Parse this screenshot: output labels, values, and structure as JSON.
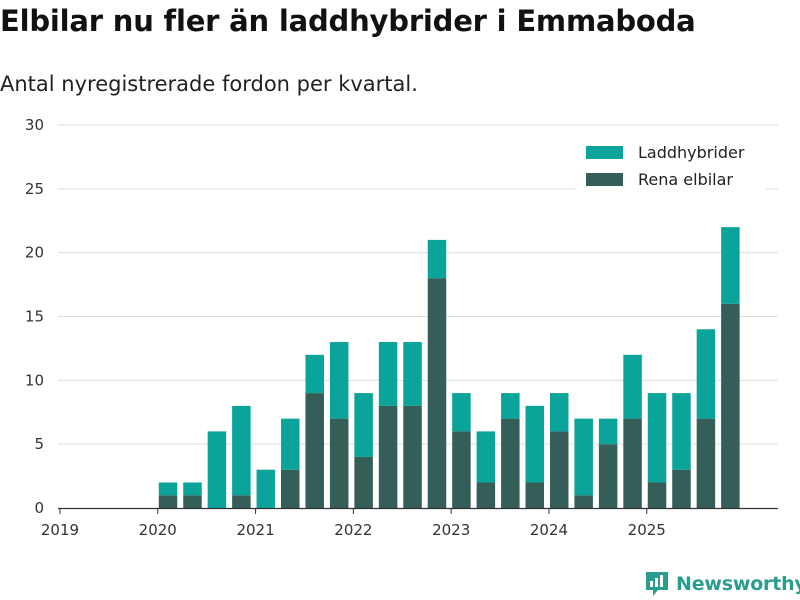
{
  "title": "Elbilar nu fler än laddhybrider i Emmaboda",
  "subtitle": "Antal nyregistrerade fordon per kvartal.",
  "brand": "Newsworthy",
  "colors": {
    "laddhybrider": "#0aa49a",
    "rena_elbilar": "#355e58",
    "grid": "#dddddd"
  },
  "chart_data": {
    "type": "bar",
    "stacked": true,
    "title": "Elbilar nu fler än laddhybrider i Emmaboda",
    "xlabel": "",
    "ylabel": "",
    "ylim": [
      0,
      30
    ],
    "yticks": [
      "0",
      "5",
      "10",
      "15",
      "20",
      "25",
      "30"
    ],
    "xticks": [
      "2019",
      "2020",
      "2021",
      "2022",
      "2023",
      "2024",
      "2025"
    ],
    "legend": {
      "position": "top-right",
      "entries": [
        "Laddhybrider",
        "Rena elbilar"
      ]
    },
    "categories": [
      "2019 Q1",
      "2019 Q2",
      "2019 Q3",
      "2019 Q4",
      "2020 Q1",
      "2020 Q2",
      "2020 Q3",
      "2020 Q4",
      "2021 Q1",
      "2021 Q2",
      "2021 Q3",
      "2021 Q4",
      "2022 Q1",
      "2022 Q2",
      "2022 Q3",
      "2022 Q4",
      "2023 Q1",
      "2023 Q2",
      "2023 Q3",
      "2023 Q4",
      "2024 Q1",
      "2024 Q2",
      "2024 Q3",
      "2024 Q4",
      "2025 Q1",
      "2025 Q2",
      "2025 Q3",
      "2025 Q4"
    ],
    "series": [
      {
        "name": "Rena elbilar",
        "values": [
          0,
          0,
          0,
          0,
          1,
          1,
          0,
          1,
          0,
          3,
          9,
          7,
          4,
          8,
          8,
          18,
          6,
          2,
          7,
          2,
          6,
          1,
          5,
          7,
          2,
          3,
          7,
          16
        ]
      },
      {
        "name": "Laddhybrider",
        "values": [
          0,
          0,
          0,
          0,
          1,
          1,
          6,
          7,
          3,
          4,
          3,
          6,
          5,
          5,
          5,
          3,
          3,
          4,
          2,
          6,
          3,
          6,
          2,
          5,
          7,
          6,
          7,
          6
        ]
      }
    ]
  }
}
